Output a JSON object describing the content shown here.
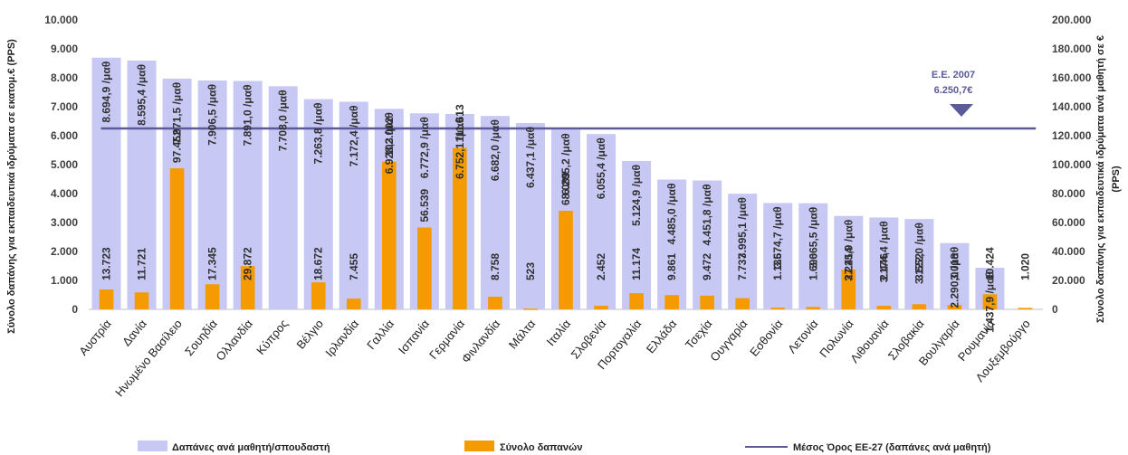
{
  "chart_data": {
    "type": "bar",
    "categories": [
      "Αυστρία",
      "Δανία",
      "Ηνωμένο Βασίλειο",
      "Σουηδία",
      "Ολλανδία",
      "Κύπρος",
      "Βέλγιο",
      "Ιρλανδία",
      "Γαλλία",
      "Ισπανία",
      "Γερμανία",
      "Φινλανδία",
      "Μάλτα",
      "Ιταλία",
      "Σλοβενία",
      "Πορτογαλία",
      "Ελλάδα",
      "Τσεχία",
      "Ουγγαρία",
      "Εσθονία",
      "Λετονία",
      "Πολωνία",
      "Λιθουανία",
      "Σλοβακία",
      "Βουλγαρία",
      "Ρουμανία",
      "Λουξεμβούργο"
    ],
    "series": [
      {
        "name": "Δαπάνες ανά μαθητή/σπουδαστή",
        "axis": "left",
        "color": "#c8c8f4",
        "values": [
          8694.9,
          8595.4,
          7971.5,
          7906.5,
          7891.0,
          7708.0,
          7263.8,
          7172.4,
          6928.3,
          6772.9,
          6752.1,
          6682.0,
          6437.1,
          6205.2,
          6055.4,
          5124.9,
          4485.0,
          4451.8,
          3995.1,
          3674.7,
          3665.5,
          3225.9,
          3174.4,
          3122.0,
          2290.0,
          1437.9,
          null
        ],
        "labels": [
          "8.694,9 /μαθ",
          "8.595,4 /μαθ",
          "7.971,5 /μαθ",
          "7.906,5 /μαθ",
          "7.891,0 /μαθ",
          "7.708,0 /μαθ",
          "7.263,8 /μαθ",
          "7.172,4 /μαθ",
          "6.928,3 /μαθ",
          "6.772,9 /μαθ",
          "6.752,1 /μαθ",
          "6.682,0 /μαθ",
          "6.437,1 /μαθ",
          "6.205,2 /μαθ",
          "6.055,4 /μαθ",
          "5.124,9 /μαθ",
          "4.485,0 /μαθ",
          "4.451,8 /μαθ",
          "3.995,1 /μαθ",
          "3.674,7 /μαθ",
          "3.665,5 /μαθ",
          "3.225,9 /μαθ",
          "3.174,4 /μαθ",
          "3.122,0 /μαθ",
          "2.290,0 /μαθ",
          "1.437,9 /μαθ",
          ""
        ]
      },
      {
        "name": "Σύνολο δαπανών",
        "axis": "right",
        "color": "#f59a00",
        "values": [
          13723,
          11721,
          97452,
          17345,
          29872,
          null,
          18672,
          7455,
          102002,
          56539,
          111613,
          8758,
          523,
          68089,
          2452,
          11174,
          9861,
          9472,
          7737,
          1135,
          1690,
          27414,
          2446,
          3552,
          3018,
          10424,
          1020
        ],
        "labels": [
          "13.723",
          "11.721",
          "97.452",
          "17.345",
          "29.872",
          "",
          "18.672",
          "7.455",
          "102.002",
          "56.539",
          "111.613",
          "8.758",
          "523",
          "68.089",
          "2.452",
          "11.174",
          "9.861",
          "9.472",
          "7.737",
          "1.135",
          "1.690",
          "27.414",
          "2.446",
          "3.552",
          "3.018",
          "10.424",
          "1.020"
        ]
      },
      {
        "name": "Μέσος Όρος ΕΕ-27 (δαπάνες ανά μαθητή)",
        "axis": "left",
        "type": "line",
        "color": "#5b5b9b",
        "value": 6250.7
      }
    ],
    "y_left": {
      "label": "Σύνολο δαπάνης για εκπαιδευτικά ιδρύματα σε εκατομ.€ (PPS)",
      "lim": [
        0,
        10000
      ],
      "ticks": [
        0,
        1000,
        2000,
        3000,
        4000,
        5000,
        6000,
        7000,
        8000,
        9000,
        10000
      ],
      "tick_labels": [
        "0",
        "1.000",
        "2.000",
        "3.000",
        "4.000",
        "5.000",
        "6.000",
        "7.000",
        "8.000",
        "9.000",
        "10.000"
      ]
    },
    "y_right": {
      "label": "Σύνολο δαπάνης για εκπαιδευτικά ιδρύματα ανά μαθητή σε €",
      "label2": "(PPS)",
      "lim": [
        0,
        200000
      ],
      "ticks": [
        0,
        20000,
        40000,
        60000,
        80000,
        100000,
        120000,
        140000,
        160000,
        180000,
        200000
      ],
      "tick_labels": [
        "0",
        "20.000",
        "40.000",
        "60.000",
        "80.000",
        "100.000",
        "120.000",
        "140.000",
        "160.000",
        "180.000",
        "200.000"
      ]
    },
    "annotation": {
      "line1": "Ε.Ε. 2007",
      "line2": "6.250,7€",
      "marker_color": "#5b5b9b"
    },
    "legend_position": "bottom",
    "grid": false
  }
}
